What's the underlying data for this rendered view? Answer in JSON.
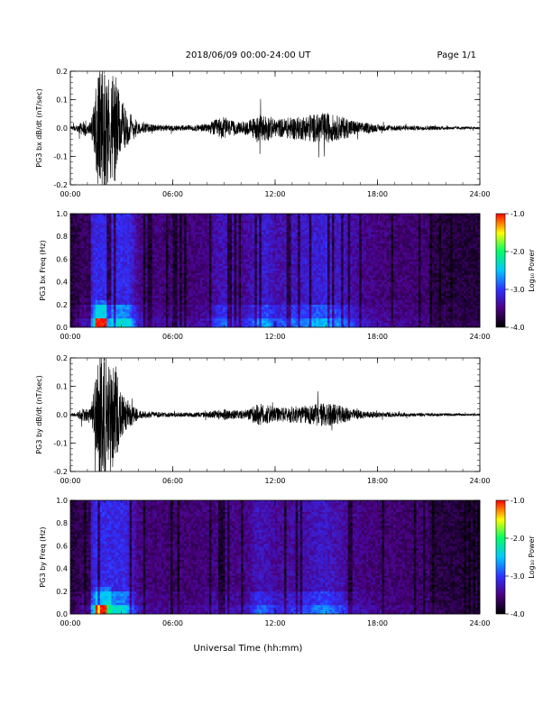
{
  "header": {
    "date_range": "2018/06/09  00:00-24:00 UT",
    "page": "Page 1/1"
  },
  "x_axis": {
    "title": "Universal Time (hh:mm)",
    "range_hours": [
      0,
      24
    ],
    "tick_labels": [
      "00:00",
      "06:00",
      "12:00",
      "18:00",
      "24:00"
    ],
    "tick_hours": [
      0,
      6,
      12,
      18,
      24
    ]
  },
  "colors": {
    "trace": "#000000",
    "colormap": [
      "#000000",
      "#4b0082",
      "#3030ff",
      "#00c8ff",
      "#00ff64",
      "#ffff00",
      "#ff0000"
    ]
  },
  "colorbar": {
    "title": "Log₁₀ Power",
    "range": [
      -4.0,
      -1.0
    ],
    "tick_labels": [
      "-1.0",
      "-2.0",
      "-3.0",
      "-4.0"
    ],
    "tick_values": [
      -1.0,
      -2.0,
      -3.0,
      -4.0
    ]
  },
  "chart_data": [
    {
      "id": "bx-dbdt",
      "type": "line",
      "ylabel": "PG3 bx dB/dt (nT/sec)",
      "ylim": [
        -0.2,
        0.2
      ],
      "y_tick_values": [
        -0.2,
        -0.1,
        0.0,
        0.1,
        0.2
      ],
      "y_tick_labels": [
        "-0.2",
        "-0.1",
        "0.0",
        "0.1",
        "0.2"
      ],
      "envelope": {
        "x_hours": [
          0.0,
          0.4,
          0.8,
          1.2,
          1.5,
          1.7,
          2.0,
          2.3,
          2.6,
          2.9,
          3.2,
          3.6,
          4.0,
          4.5,
          5.0,
          6.0,
          7.0,
          8.0,
          8.5,
          9.0,
          9.5,
          10.0,
          10.5,
          11.0,
          11.5,
          12.0,
          12.5,
          13.0,
          13.5,
          14.0,
          14.5,
          15.0,
          15.5,
          16.0,
          16.5,
          17.0,
          17.5,
          18.0,
          19.0,
          20.0,
          21.0,
          22.0,
          23.0,
          24.0
        ],
        "amplitude": [
          0.005,
          0.012,
          0.03,
          0.02,
          0.15,
          0.23,
          0.23,
          0.18,
          0.22,
          0.1,
          0.07,
          0.05,
          0.02,
          0.015,
          0.012,
          0.01,
          0.01,
          0.015,
          0.03,
          0.04,
          0.025,
          0.02,
          0.03,
          0.045,
          0.05,
          0.03,
          0.035,
          0.04,
          0.04,
          0.05,
          0.05,
          0.055,
          0.045,
          0.04,
          0.03,
          0.02,
          0.018,
          0.012,
          0.01,
          0.008,
          0.008,
          0.006,
          0.005,
          0.004
        ]
      }
    },
    {
      "id": "bx-freq",
      "type": "heatmap",
      "ylabel": "PG3 bx Freq (Hz)",
      "ylim": [
        0.0,
        1.0
      ],
      "y_tick_values": [
        0.0,
        0.2,
        0.4,
        0.6,
        0.8,
        1.0
      ],
      "y_tick_labels": [
        "0.0",
        "0.2",
        "0.4",
        "0.6",
        "0.8",
        "1.0"
      ],
      "z_range": [
        -4.0,
        -1.0
      ]
    },
    {
      "id": "by-dbdt",
      "type": "line",
      "ylabel": "PG3 by dB/dt (nT/sec)",
      "ylim": [
        -0.2,
        0.2
      ],
      "y_tick_values": [
        -0.2,
        -0.1,
        0.0,
        0.1,
        0.2
      ],
      "y_tick_labels": [
        "-0.2",
        "-0.1",
        "0.0",
        "0.1",
        "0.2"
      ],
      "envelope": {
        "x_hours": [
          0.0,
          0.4,
          0.8,
          1.2,
          1.5,
          1.7,
          2.0,
          2.3,
          2.6,
          2.9,
          3.2,
          3.6,
          4.0,
          4.5,
          5.0,
          6.0,
          7.0,
          8.0,
          8.5,
          9.0,
          9.5,
          10.0,
          10.5,
          11.0,
          11.5,
          12.0,
          12.5,
          13.0,
          13.5,
          14.0,
          14.5,
          15.0,
          15.5,
          16.0,
          16.5,
          17.0,
          17.5,
          18.0,
          19.0,
          20.0,
          21.0,
          22.0,
          23.0,
          24.0
        ],
        "amplitude": [
          0.004,
          0.01,
          0.025,
          0.02,
          0.14,
          0.23,
          0.23,
          0.17,
          0.2,
          0.09,
          0.06,
          0.04,
          0.015,
          0.012,
          0.01,
          0.008,
          0.008,
          0.01,
          0.015,
          0.02,
          0.015,
          0.015,
          0.02,
          0.04,
          0.035,
          0.025,
          0.025,
          0.03,
          0.03,
          0.035,
          0.04,
          0.045,
          0.035,
          0.03,
          0.02,
          0.015,
          0.012,
          0.01,
          0.008,
          0.006,
          0.006,
          0.005,
          0.004,
          0.004
        ]
      }
    },
    {
      "id": "by-freq",
      "type": "heatmap",
      "ylabel": "PG3 by Freq (Hz)",
      "ylim": [
        0.0,
        1.0
      ],
      "y_tick_values": [
        0.0,
        0.2,
        0.4,
        0.6,
        0.8,
        1.0
      ],
      "y_tick_labels": [
        "0.0",
        "0.2",
        "0.4",
        "0.6",
        "0.8",
        "1.0"
      ],
      "z_range": [
        -4.0,
        -1.0
      ]
    }
  ]
}
